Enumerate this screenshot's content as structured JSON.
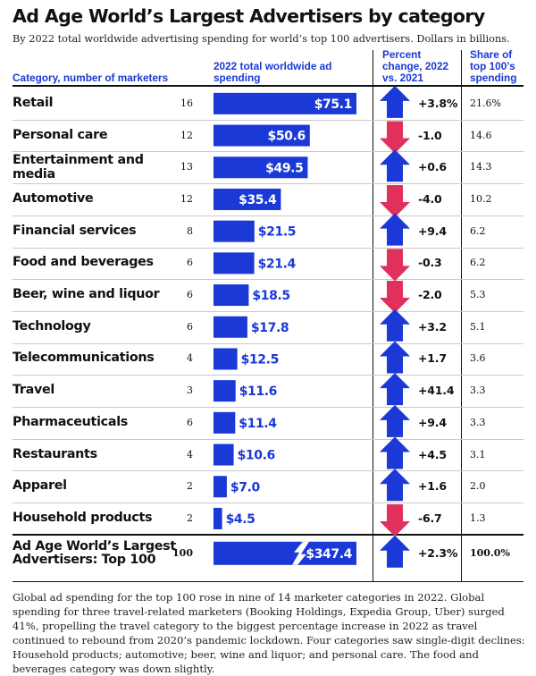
{
  "title": "Ad Age World’s Largest Advertisers by category",
  "subtitle": "By 2022 total worldwide advertising spending for world’s top 100 advertisers. Dollars in billions.",
  "headers": {
    "category": "Category, number of marketers",
    "spending": "2022 total worldwide ad spending",
    "change": "Percent change, 2022 vs. 2021",
    "share": "Share of top 100’s spending"
  },
  "colors": {
    "bar": "#1a39d6",
    "up": "#1a39d6",
    "down": "#e0305c"
  },
  "rows": [
    {
      "category": "Retail",
      "count": "16",
      "spend": 75.1,
      "spend_label": "$75.1",
      "change": 3.8,
      "change_label": "+3.8%",
      "share": "21.6%"
    },
    {
      "category": "Personal care",
      "count": "12",
      "spend": 50.6,
      "spend_label": "$50.6",
      "change": -1.0,
      "change_label": "-1.0",
      "share": "14.6"
    },
    {
      "category": "Entertainment and media",
      "count": "13",
      "spend": 49.5,
      "spend_label": "$49.5",
      "change": 0.6,
      "change_label": "+0.6",
      "share": "14.3"
    },
    {
      "category": "Automotive",
      "count": "12",
      "spend": 35.4,
      "spend_label": "$35.4",
      "change": -4.0,
      "change_label": "-4.0",
      "share": "10.2"
    },
    {
      "category": "Financial services",
      "count": "8",
      "spend": 21.5,
      "spend_label": "$21.5",
      "change": 9.4,
      "change_label": "+9.4",
      "share": "6.2"
    },
    {
      "category": "Food and beverages",
      "count": "6",
      "spend": 21.4,
      "spend_label": "$21.4",
      "change": -0.3,
      "change_label": "-0.3",
      "share": "6.2"
    },
    {
      "category": "Beer, wine and liquor",
      "count": "6",
      "spend": 18.5,
      "spend_label": "$18.5",
      "change": -2.0,
      "change_label": "-2.0",
      "share": "5.3"
    },
    {
      "category": "Technology",
      "count": "6",
      "spend": 17.8,
      "spend_label": "$17.8",
      "change": 3.2,
      "change_label": "+3.2",
      "share": "5.1"
    },
    {
      "category": "Telecommunications",
      "count": "4",
      "spend": 12.5,
      "spend_label": "$12.5",
      "change": 1.7,
      "change_label": "+1.7",
      "share": "3.6"
    },
    {
      "category": "Travel",
      "count": "3",
      "spend": 11.6,
      "spend_label": "$11.6",
      "change": 41.4,
      "change_label": "+41.4",
      "share": "3.3"
    },
    {
      "category": "Pharmaceuticals",
      "count": "6",
      "spend": 11.4,
      "spend_label": "$11.4",
      "change": 9.4,
      "change_label": "+9.4",
      "share": "3.3"
    },
    {
      "category": "Restaurants",
      "count": "4",
      "spend": 10.6,
      "spend_label": "$10.6",
      "change": 4.5,
      "change_label": "+4.5",
      "share": "3.1"
    },
    {
      "category": "Apparel",
      "count": "2",
      "spend": 7.0,
      "spend_label": "$7.0",
      "change": 1.6,
      "change_label": "+1.6",
      "share": "2.0"
    },
    {
      "category": "Household products",
      "count": "2",
      "spend": 4.5,
      "spend_label": "$4.5",
      "change": -6.7,
      "change_label": "-6.7",
      "share": "1.3"
    }
  ],
  "total": {
    "category": "Ad Age World’s Largest Advertisers: Top 100",
    "count": "100",
    "spend": 347.4,
    "spend_label": "$347.4",
    "change": 2.3,
    "change_label": "+2.3%",
    "share": "100.0%"
  },
  "footnote": "Global ad spending for the top 100 rose in nine of 14 marketer categories in 2022. Global spending for three travel-related marketers (Booking Holdings, Expedia Group, Uber) surged 41%, propelling the travel category to the biggest percentage increase in 2022 as travel continued to rebound from 2020’s pandemic lockdown. Four categories saw single-digit declines: Household products; automotive; beer, wine and liquor; and personal care. The food and beverages category was down slightly.",
  "chart_data": {
    "type": "bar",
    "title": "Ad Age World’s Largest Advertisers by category",
    "xlabel": "",
    "ylabel": "2022 total worldwide ad spending (Dollars in billions)",
    "categories": [
      "Retail",
      "Personal care",
      "Entertainment and media",
      "Automotive",
      "Financial services",
      "Food and beverages",
      "Beer, wine and liquor",
      "Technology",
      "Telecommunications",
      "Travel",
      "Pharmaceuticals",
      "Restaurants",
      "Apparel",
      "Household products"
    ],
    "series": [
      {
        "name": "2022 total worldwide ad spending",
        "values": [
          75.1,
          50.6,
          49.5,
          35.4,
          21.5,
          21.4,
          18.5,
          17.8,
          12.5,
          11.6,
          11.4,
          10.6,
          7.0,
          4.5
        ]
      },
      {
        "name": "Percent change, 2022 vs. 2021",
        "values": [
          3.8,
          -1.0,
          0.6,
          -4.0,
          9.4,
          -0.3,
          -2.0,
          3.2,
          1.7,
          41.4,
          9.4,
          4.5,
          1.6,
          -6.7
        ]
      },
      {
        "name": "Share of top 100’s spending",
        "values": [
          21.6,
          14.6,
          14.3,
          10.2,
          6.2,
          6.2,
          5.3,
          5.1,
          3.6,
          3.3,
          3.3,
          3.1,
          2.0,
          1.3
        ]
      }
    ],
    "total": {
      "name": "Ad Age World’s Largest Advertisers: Top 100",
      "spend": 347.4,
      "change": 2.3,
      "share": 100.0
    },
    "legend": "none",
    "grid": false
  }
}
